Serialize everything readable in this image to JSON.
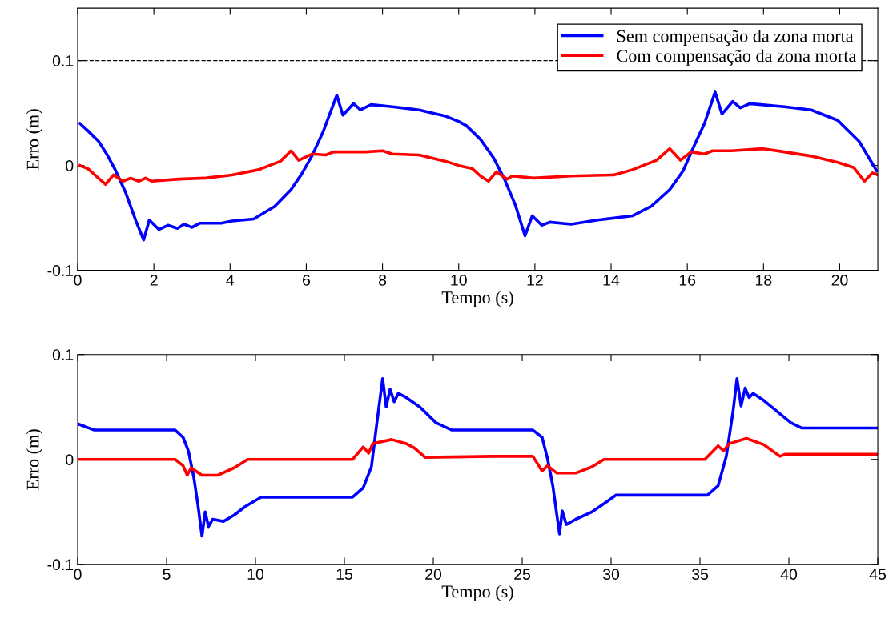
{
  "chart_data": [
    {
      "type": "line",
      "xlabel": "Tempo (s)",
      "ylabel": "Erro (m)",
      "xlim": [
        0,
        21
      ],
      "ylim": [
        -0.1,
        0.15
      ],
      "xticks": [
        0,
        2,
        4,
        6,
        8,
        10,
        12,
        14,
        16,
        18,
        20
      ],
      "yticks": [
        -0.1,
        0,
        0.1
      ],
      "grid": false,
      "legend": "top right",
      "line_style": "solid",
      "marker": "none",
      "ref_lines": [
        {
          "axis": "y",
          "value": 0.1,
          "color": "#000000",
          "line_style": "dashed"
        }
      ],
      "series": [
        {
          "name": "Sem compensação da zona morta",
          "color": "#0000ff",
          "x": [
            0.06,
            0.27,
            0.55,
            0.76,
            0.97,
            1.25,
            1.53,
            1.73,
            1.88,
            2.13,
            2.37,
            2.62,
            2.79,
            3.0,
            3.21,
            3.77,
            4.05,
            4.62,
            5.17,
            5.6,
            5.88,
            6.16,
            6.45,
            6.8,
            6.96,
            7.24,
            7.42,
            7.7,
            8.26,
            8.96,
            9.66,
            10.0,
            10.2,
            10.57,
            10.92,
            11.2,
            11.49,
            11.74,
            11.93,
            12.18,
            12.39,
            12.95,
            13.65,
            14.56,
            15.05,
            15.54,
            15.89,
            16.17,
            16.45,
            16.73,
            16.91,
            17.19,
            17.39,
            17.64,
            18.55,
            19.25,
            19.95,
            20.51,
            20.97
          ],
          "values": [
            0.04,
            0.033,
            0.023,
            0.011,
            -0.003,
            -0.025,
            -0.053,
            -0.071,
            -0.052,
            -0.061,
            -0.057,
            -0.06,
            -0.056,
            -0.059,
            -0.055,
            -0.055,
            -0.053,
            -0.051,
            -0.039,
            -0.023,
            -0.008,
            0.01,
            0.033,
            0.067,
            0.048,
            0.059,
            0.053,
            0.058,
            0.056,
            0.053,
            0.047,
            0.042,
            0.038,
            0.025,
            0.007,
            -0.013,
            -0.038,
            -0.067,
            -0.048,
            -0.057,
            -0.054,
            -0.056,
            -0.052,
            -0.048,
            -0.039,
            -0.023,
            -0.005,
            0.018,
            0.04,
            0.07,
            0.049,
            0.061,
            0.055,
            0.059,
            0.056,
            0.053,
            0.043,
            0.023,
            -0.005
          ]
        },
        {
          "name": "Com compensação da zona morta",
          "color": "#ff0000",
          "x": [
            0.06,
            0.27,
            0.48,
            0.73,
            0.94,
            1.19,
            1.39,
            1.6,
            1.78,
            1.95,
            2.65,
            3.35,
            4.05,
            4.75,
            5.32,
            5.6,
            5.8,
            6.16,
            6.51,
            6.72,
            7.56,
            8.0,
            8.26,
            8.96,
            9.66,
            10.0,
            10.36,
            10.57,
            10.78,
            10.99,
            11.27,
            11.41,
            11.97,
            12.95,
            14.07,
            14.56,
            15.19,
            15.54,
            15.82,
            16.1,
            16.45,
            16.66,
            17.15,
            17.99,
            18.55,
            19.25,
            19.95,
            20.37,
            20.65,
            20.86,
            21.0
          ],
          "values": [
            0.0,
            -0.003,
            -0.01,
            -0.018,
            -0.009,
            -0.015,
            -0.012,
            -0.015,
            -0.012,
            -0.015,
            -0.013,
            -0.012,
            -0.009,
            -0.004,
            0.004,
            0.014,
            0.005,
            0.011,
            0.01,
            0.013,
            0.013,
            0.014,
            0.011,
            0.01,
            0.004,
            0.0,
            -0.003,
            -0.01,
            -0.015,
            -0.006,
            -0.013,
            -0.01,
            -0.012,
            -0.01,
            -0.009,
            -0.004,
            0.005,
            0.016,
            0.005,
            0.013,
            0.011,
            0.014,
            0.014,
            0.016,
            0.013,
            0.009,
            0.003,
            -0.002,
            -0.015,
            -0.007,
            -0.009
          ]
        }
      ]
    },
    {
      "type": "line",
      "xlabel": "Tempo (s)",
      "ylabel": "Erro (m)",
      "xlim": [
        0,
        45
      ],
      "ylim": [
        -0.1,
        0.1
      ],
      "xticks": [
        0,
        5,
        10,
        15,
        20,
        25,
        30,
        35,
        40,
        45
      ],
      "yticks": [
        -0.1,
        0,
        0.1
      ],
      "grid": false,
      "legend": false,
      "line_style": "solid",
      "marker": "none",
      "series": [
        {
          "color": "#0000ff",
          "x": [
            0,
            0.94,
            5.48,
            5.93,
            6.23,
            6.53,
            6.76,
            6.99,
            7.17,
            7.36,
            7.59,
            8.2,
            8.8,
            9.41,
            10.31,
            15.46,
            16.06,
            16.52,
            16.82,
            17.15,
            17.35,
            17.57,
            17.8,
            18.03,
            18.48,
            19.24,
            20.15,
            21.05,
            25.6,
            26.12,
            26.42,
            26.72,
            26.95,
            27.1,
            27.25,
            27.48,
            28.01,
            28.92,
            29.52,
            30.28,
            35.42,
            36.02,
            36.48,
            36.86,
            37.08,
            37.31,
            37.54,
            37.76,
            37.99,
            38.6,
            40.11,
            40.71,
            45.0
          ],
          "values": [
            0.034,
            0.028,
            0.028,
            0.021,
            0.008,
            -0.017,
            -0.043,
            -0.073,
            -0.05,
            -0.064,
            -0.057,
            -0.059,
            -0.053,
            -0.045,
            -0.036,
            -0.036,
            -0.027,
            -0.007,
            0.034,
            0.077,
            0.05,
            0.067,
            0.055,
            0.063,
            0.059,
            0.05,
            0.035,
            0.028,
            0.028,
            0.021,
            0.001,
            -0.025,
            -0.053,
            -0.071,
            -0.049,
            -0.062,
            -0.057,
            -0.05,
            -0.043,
            -0.034,
            -0.034,
            -0.025,
            0.003,
            0.046,
            0.077,
            0.051,
            0.068,
            0.059,
            0.063,
            0.056,
            0.035,
            0.03,
            0.03
          ]
        },
        {
          "color": "#ff0000",
          "x": [
            0,
            5.48,
            5.93,
            6.16,
            6.38,
            6.99,
            7.89,
            8.8,
            9.56,
            15.46,
            16.06,
            16.36,
            16.59,
            17.65,
            18.48,
            18.93,
            19.54,
            23.32,
            25.6,
            26.12,
            26.42,
            26.95,
            28.01,
            28.92,
            29.6,
            35.27,
            36.02,
            36.33,
            36.63,
            37.61,
            38.6,
            39.5,
            39.8,
            45.0
          ],
          "values": [
            0.0,
            0.0,
            -0.006,
            -0.015,
            -0.008,
            -0.015,
            -0.015,
            -0.008,
            0.0,
            0.0,
            0.012,
            0.006,
            0.015,
            0.019,
            0.015,
            0.011,
            0.002,
            0.003,
            0.003,
            -0.011,
            -0.006,
            -0.013,
            -0.013,
            -0.007,
            0.0,
            0.0,
            0.013,
            0.008,
            0.015,
            0.02,
            0.014,
            0.003,
            0.005,
            0.005
          ]
        }
      ]
    }
  ]
}
